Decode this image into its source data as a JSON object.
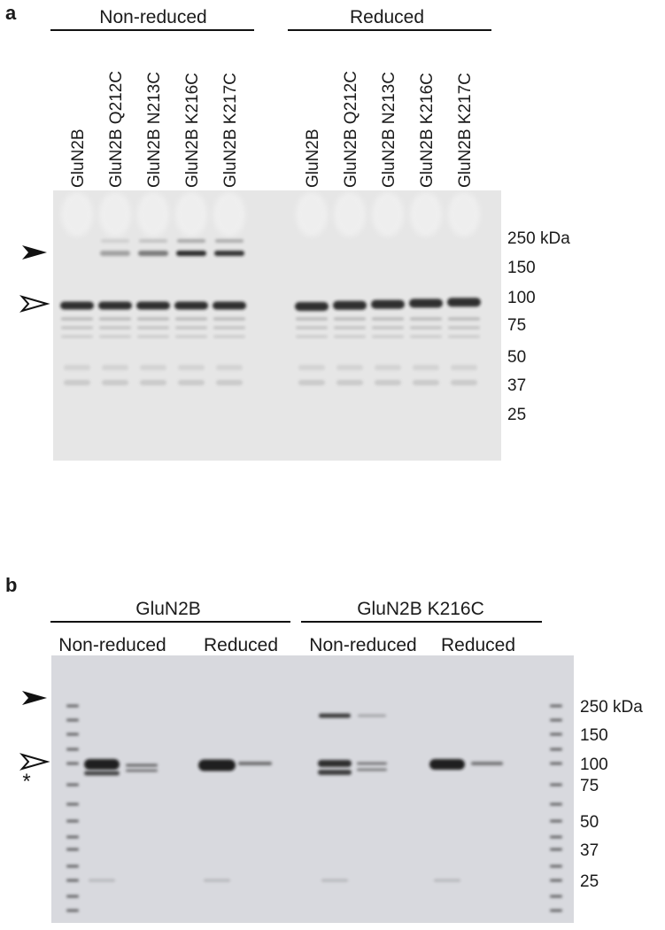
{
  "panel_a": {
    "label": "a",
    "groups": [
      "Non-reduced",
      "Reduced"
    ],
    "lanes": [
      "GluN2B",
      "GluN2B Q212C",
      "GluN2B N213C",
      "GluN2B K216C",
      "GluN2B K217C",
      "GluN2B",
      "GluN2B Q212C",
      "GluN2B N213C",
      "GluN2B K216C",
      "GluN2B K217C"
    ],
    "mw_markers": [
      "250 kDa",
      "150",
      "100",
      "75",
      "50",
      "37",
      "25"
    ]
  },
  "panel_b": {
    "label": "b",
    "groups": [
      "GluN2B",
      "GluN2B K216C"
    ],
    "conditions": [
      "Non-reduced",
      "Reduced",
      "Non-reduced",
      "Reduced"
    ],
    "mw_markers": [
      "250 kDa",
      "150",
      "100",
      "75",
      "50",
      "37",
      "25"
    ],
    "asterisk": "*"
  }
}
